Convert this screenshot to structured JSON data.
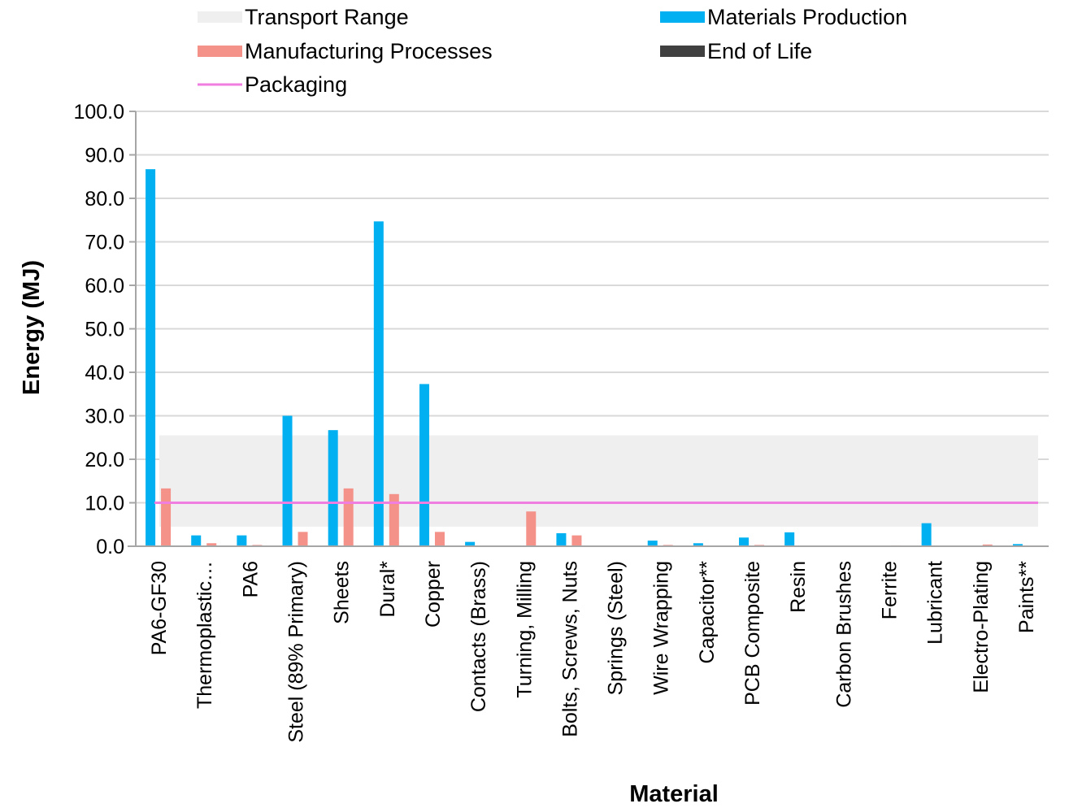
{
  "chart_data": {
    "type": "bar",
    "title": "",
    "xlabel": "Material",
    "ylabel": "Energy (MJ)",
    "ylim": [
      0,
      100
    ],
    "yticks": [
      "0.0",
      "10.0",
      "20.0",
      "30.0",
      "40.0",
      "50.0",
      "60.0",
      "70.0",
      "80.0",
      "90.0",
      "100.0"
    ],
    "grid": true,
    "legend_position": "top",
    "categories": [
      "PA6-GF30",
      "Thermoplastic…",
      "PA6",
      "Steel (89% Primary)",
      "Sheets",
      "Dural*",
      "Copper",
      "Contacts (Brass)",
      "Turning, Milling",
      "Bolts, Screws, Nuts",
      "Springs (Steel)",
      "Wire Wrapping",
      "Capacitor**",
      "PCB Composite",
      "Resin",
      "Carbon Brushes",
      "Ferrite",
      "Lubricant",
      "Electro-Plating",
      "Paints**"
    ],
    "series": [
      {
        "name": "Materials Production",
        "color": "#00b0f0",
        "values": [
          86.7,
          2.5,
          2.5,
          30.0,
          26.7,
          74.7,
          37.3,
          1.0,
          0.0,
          3.0,
          0.0,
          1.3,
          0.7,
          2.0,
          3.2,
          0.0,
          0.0,
          5.3,
          0.0,
          0.5
        ]
      },
      {
        "name": "Manufacturing Processes",
        "color": "#f4928a",
        "values": [
          13.3,
          0.7,
          0.3,
          3.3,
          13.3,
          12.0,
          3.3,
          0.0,
          8.0,
          2.5,
          0.0,
          0.3,
          0.0,
          0.3,
          0.0,
          0.0,
          0.2,
          0.0,
          0.4,
          0.0
        ]
      }
    ],
    "overlays": {
      "transport_range": {
        "name": "Transport Range",
        "color": "#efefef",
        "low": 4.5,
        "high": 25.5
      },
      "packaging": {
        "name": "Packaging",
        "color": "#f07de0",
        "value": 10.0
      },
      "end_of_life": {
        "name": "End of Life",
        "color": "#404040"
      }
    },
    "legend": [
      "Transport Range",
      "Materials Production",
      "Manufacturing Processes",
      "End of Life",
      "Packaging"
    ],
    "gridline_color": "#d9d9d9",
    "axis_color": "#a6a6a6"
  }
}
